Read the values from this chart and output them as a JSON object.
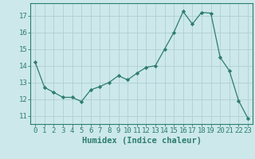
{
  "x": [
    0,
    1,
    2,
    3,
    4,
    5,
    6,
    7,
    8,
    9,
    10,
    11,
    12,
    13,
    14,
    15,
    16,
    17,
    18,
    19,
    20,
    21,
    22,
    23
  ],
  "y": [
    14.2,
    12.7,
    12.4,
    12.1,
    12.1,
    11.85,
    12.55,
    12.75,
    13.0,
    13.4,
    13.15,
    13.55,
    13.9,
    14.0,
    15.0,
    16.0,
    17.25,
    16.5,
    17.2,
    17.15,
    14.5,
    13.7,
    11.9,
    10.85
  ],
  "line_color": "#2e7d6e",
  "marker": "D",
  "markersize": 2.2,
  "linewidth": 0.9,
  "bg_color": "#cce8eb",
  "grid_color": "#b0cfd3",
  "xlabel": "Humidex (Indice chaleur)",
  "xlim": [
    -0.5,
    23.5
  ],
  "ylim": [
    10.5,
    17.75
  ],
  "yticks": [
    11,
    12,
    13,
    14,
    15,
    16,
    17
  ],
  "xticks": [
    0,
    1,
    2,
    3,
    4,
    5,
    6,
    7,
    8,
    9,
    10,
    11,
    12,
    13,
    14,
    15,
    16,
    17,
    18,
    19,
    20,
    21,
    22,
    23
  ],
  "tick_color": "#2e7d6e",
  "label_color": "#2e7d6e",
  "xlabel_fontsize": 7.5,
  "tick_fontsize": 6.5,
  "spine_color": "#2e7d6e"
}
